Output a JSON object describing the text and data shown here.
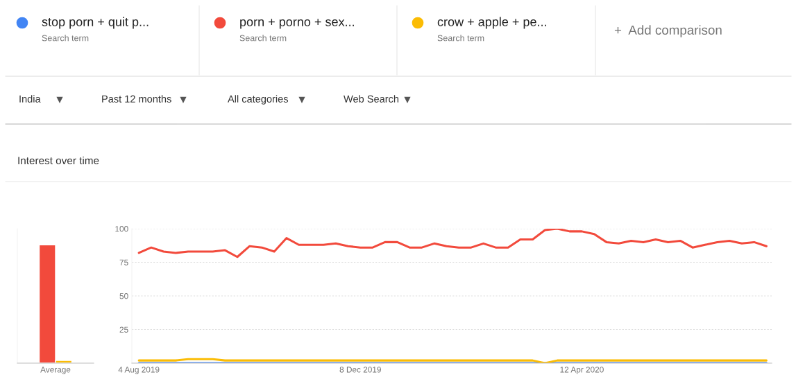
{
  "chart_data": [
    {
      "type": "bar",
      "categories": [
        "Average"
      ],
      "ylim": [
        0,
        100
      ],
      "tick_labels": "x",
      "grid": false,
      "legend": false,
      "series": [
        {
          "color": "#f24a3c",
          "values": [
            88
          ]
        },
        {
          "color": "#fbbc04",
          "values": [
            2
          ]
        }
      ]
    },
    {
      "type": "line",
      "legend": "top",
      "grid": "y",
      "line_style": "solid",
      "marker": "none",
      "xlim": [
        "2019-07-31",
        "2020-07-29"
      ],
      "ylim": [
        0,
        100
      ],
      "yticks": [
        25,
        50,
        75,
        100
      ],
      "xticks": [
        {
          "value": "2019-08-04",
          "label": "4 Aug 2019"
        },
        {
          "value": "2019-12-08",
          "label": "8 Dec 2019"
        },
        {
          "value": "2020-04-12",
          "label": "12 Apr 2020"
        }
      ],
      "x": [
        "2019-08-04",
        "2019-08-11",
        "2019-08-18",
        "2019-08-25",
        "2019-09-01",
        "2019-09-08",
        "2019-09-15",
        "2019-09-22",
        "2019-09-29",
        "2019-10-06",
        "2019-10-13",
        "2019-10-20",
        "2019-10-27",
        "2019-11-03",
        "2019-11-10",
        "2019-11-17",
        "2019-11-24",
        "2019-12-01",
        "2019-12-08",
        "2019-12-15",
        "2019-12-22",
        "2019-12-29",
        "2020-01-05",
        "2020-01-12",
        "2020-01-19",
        "2020-01-26",
        "2020-02-02",
        "2020-02-09",
        "2020-02-16",
        "2020-02-23",
        "2020-03-01",
        "2020-03-08",
        "2020-03-15",
        "2020-03-22",
        "2020-03-29",
        "2020-04-05",
        "2020-04-12",
        "2020-04-19",
        "2020-04-26",
        "2020-05-03",
        "2020-05-10",
        "2020-05-17",
        "2020-05-24",
        "2020-05-31",
        "2020-06-07",
        "2020-06-14",
        "2020-06-21",
        "2020-06-28",
        "2020-07-05",
        "2020-07-12",
        "2020-07-19",
        "2020-07-26"
      ],
      "series": [
        {
          "name": "stop porn + quit p...",
          "color": "#4285f4",
          "values": [
            0,
            0,
            0,
            0,
            0,
            0,
            0,
            0,
            0,
            0,
            0,
            0,
            0,
            0,
            0,
            0,
            0,
            0,
            0,
            0,
            0,
            0,
            0,
            0,
            0,
            0,
            0,
            0,
            0,
            0,
            0,
            0,
            0,
            0,
            0,
            0,
            0,
            0,
            0,
            0,
            0,
            0,
            0,
            0,
            0,
            0,
            0,
            0,
            0,
            0,
            0,
            0
          ]
        },
        {
          "name": "porn + porno + sex...",
          "color": "#f24a3c",
          "values": [
            82,
            86,
            83,
            82,
            83,
            83,
            83,
            84,
            79,
            87,
            86,
            83,
            93,
            88,
            88,
            88,
            89,
            87,
            86,
            86,
            90,
            90,
            86,
            86,
            89,
            87,
            86,
            86,
            89,
            86,
            86,
            92,
            92,
            99,
            100,
            98,
            98,
            96,
            90,
            89,
            91,
            90,
            92,
            90,
            91,
            86,
            88,
            90,
            91,
            89,
            90,
            87
          ]
        },
        {
          "name": "crow + apple + pe...",
          "color": "#fbbc04",
          "values": [
            2,
            2,
            2,
            2,
            3,
            3,
            3,
            2,
            2,
            2,
            2,
            2,
            2,
            2,
            2,
            2,
            2,
            2,
            2,
            2,
            2,
            2,
            2,
            2,
            2,
            2,
            2,
            2,
            2,
            2,
            2,
            2,
            2,
            0,
            2,
            2,
            2,
            2,
            2,
            2,
            2,
            2,
            2,
            2,
            2,
            2,
            2,
            2,
            2,
            2,
            2,
            2
          ]
        }
      ],
      "annotations": [
        "Search term",
        "Search term",
        "Search term",
        "+  Add comparison",
        "India",
        "Past 12 months",
        "All categories",
        "Web Search",
        "Interest over time"
      ]
    }
  ]
}
